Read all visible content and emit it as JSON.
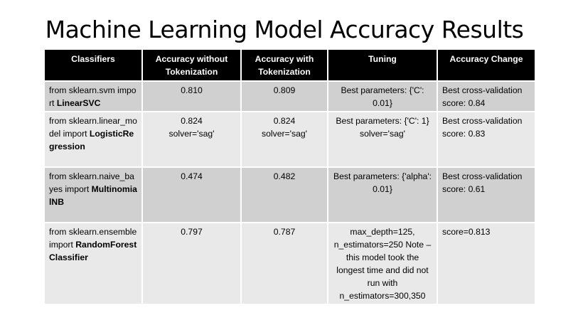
{
  "title": "Machine Learning Model Accuracy Results",
  "table": {
    "headers": [
      "Classifiers",
      "Accuracy without Tokenization",
      "Accuracy with Tokenization",
      "Tuning",
      "Accuracy Change"
    ],
    "rows": [
      {
        "classifier_prefix": "from sklearn.svm import ",
        "classifier_name": "LinearSVC",
        "acc_without": "0.810",
        "acc_without_note": "",
        "acc_with": "0.809",
        "acc_with_note": "",
        "tuning": "Best parameters: {'C': 0.01}",
        "tuning_note": "",
        "change": "Best cross-validation score: 0.84"
      },
      {
        "classifier_prefix": "from sklearn.linear_model import ",
        "classifier_name": "LogisticRegression",
        "acc_without": "0.824",
        "acc_without_note": "solver='sag'",
        "acc_with": "0.824",
        "acc_with_note": "solver='sag'",
        "tuning": "Best parameters: {'C': 1}",
        "tuning_note": "solver='sag'",
        "change": "Best cross-validation score: 0.83"
      },
      {
        "classifier_prefix": "from sklearn.naive_bayes import ",
        "classifier_name": "MultinomialNB",
        "acc_without": "0.474",
        "acc_without_note": "",
        "acc_with": "0.482",
        "acc_with_note": "",
        "tuning": "Best parameters: {'alpha': 0.01}",
        "tuning_note": "",
        "change": "Best cross-validation score: 0.61"
      },
      {
        "classifier_prefix": "from sklearn.ensemble import ",
        "classifier_name": "RandomForestClassifier",
        "acc_without": "0.797",
        "acc_without_note": "",
        "acc_with": "0.787",
        "acc_with_note": "",
        "tuning": "max_depth=125, n_estimators=250 Note – this model took the longest time and did not run with n_estimators=300,350",
        "tuning_note": "",
        "change": "score=0.813"
      }
    ]
  }
}
